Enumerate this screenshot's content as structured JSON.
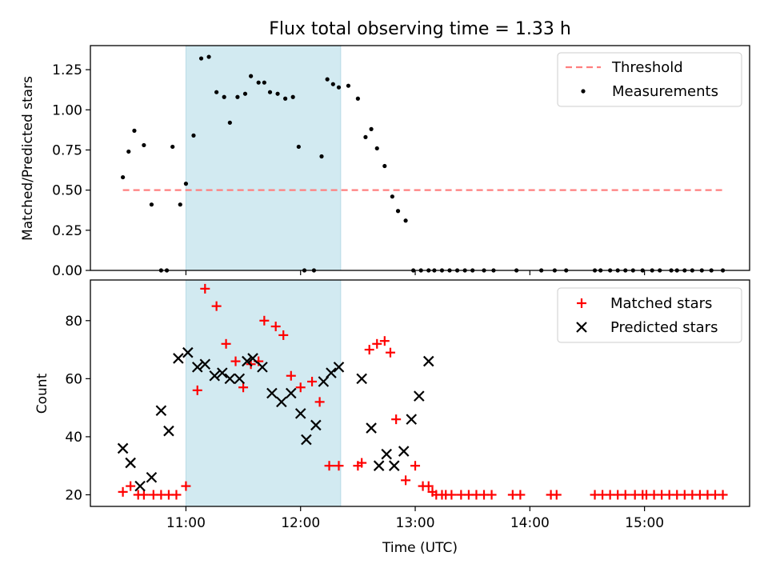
{
  "chart_data": [
    {
      "type": "scatter",
      "title": "Flux total observing time = 1.33 h",
      "xlabel": "",
      "ylabel": "Matched/Predicted stars",
      "xlim": [
        "10:10",
        "15:55"
      ],
      "ylim": [
        0,
        1.4
      ],
      "yticks": [
        "0.00",
        "0.25",
        "0.50",
        "0.75",
        "1.00",
        "1.25"
      ],
      "shaded_region": [
        "11:00",
        "12:21"
      ],
      "legend_position": "top-right",
      "legend": {
        "threshold": "Threshold",
        "measurements": "Measurements"
      },
      "threshold": {
        "value": 0.5,
        "x_start": "10:27",
        "x_end": "15:41",
        "color": "#ff7f7f"
      },
      "series": [
        {
          "name": "Measurements",
          "color": "#000000",
          "x": [
            "10:27",
            "10:30",
            "10:33",
            "10:38",
            "10:42",
            "10:47",
            "10:50",
            "10:53",
            "10:57",
            "11:00",
            "11:04",
            "11:08",
            "11:12",
            "11:16",
            "11:20",
            "11:23",
            "11:27",
            "11:31",
            "11:34",
            "11:38",
            "11:41",
            "11:44",
            "11:48",
            "11:52",
            "11:56",
            "11:59",
            "12:02",
            "12:07",
            "12:11",
            "12:14",
            "12:17",
            "12:20",
            "12:25",
            "12:30",
            "12:34",
            "12:37",
            "12:40",
            "12:44",
            "12:48",
            "12:51",
            "12:55",
            "12:59",
            "13:03",
            "13:07",
            "13:10",
            "13:14",
            "13:18",
            "13:22",
            "13:26",
            "13:30",
            "13:36",
            "13:41",
            "13:53",
            "14:06",
            "14:13",
            "14:19",
            "14:34",
            "14:37",
            "14:42",
            "14:46",
            "14:50",
            "14:54",
            "14:59",
            "15:04",
            "15:08",
            "15:14",
            "15:17",
            "15:21",
            "15:25",
            "15:30",
            "15:35",
            "15:41"
          ],
          "y": [
            0.58,
            0.74,
            0.87,
            0.78,
            0.41,
            0.0,
            0.0,
            0.77,
            0.41,
            0.54,
            0.84,
            1.32,
            1.33,
            1.11,
            1.08,
            0.92,
            1.08,
            1.1,
            1.21,
            1.17,
            1.17,
            1.11,
            1.1,
            1.07,
            1.08,
            0.77,
            0.0,
            0.0,
            0.71,
            1.19,
            1.16,
            1.14,
            1.15,
            1.07,
            0.83,
            0.88,
            0.76,
            0.65,
            0.46,
            0.37,
            0.31,
            0.0,
            0.0,
            0.0,
            0.0,
            0.0,
            0.0,
            0.0,
            0.0,
            0.0,
            0.0,
            0.0,
            0.0,
            0.0,
            0.0,
            0.0,
            0.0,
            0.0,
            0.0,
            0.0,
            0.0,
            0.0,
            0.0,
            0.0,
            0.0,
            0.0,
            0.0,
            0.0,
            0.0,
            0.0,
            0.0,
            0.0
          ]
        }
      ]
    },
    {
      "type": "scatter",
      "title": "",
      "xlabel": "Time (UTC)",
      "ylabel": "Count",
      "xlim": [
        "10:10",
        "15:55"
      ],
      "ylim": [
        16,
        94
      ],
      "yticks": [
        "20",
        "40",
        "60",
        "80"
      ],
      "xticks": [
        "11:00",
        "12:00",
        "13:00",
        "14:00",
        "15:00"
      ],
      "shaded_region": [
        "11:00",
        "12:21"
      ],
      "legend_position": "top-right",
      "series": [
        {
          "name": "Matched stars",
          "marker": "+",
          "color": "#ff0000",
          "x": [
            "10:27",
            "10:31",
            "10:35",
            "10:38",
            "10:43",
            "10:47",
            "10:51",
            "10:55",
            "11:00",
            "11:06",
            "11:10",
            "11:16",
            "11:21",
            "11:26",
            "11:30",
            "11:34",
            "11:38",
            "11:41",
            "11:47",
            "11:51",
            "11:55",
            "12:00",
            "12:06",
            "12:10",
            "12:15",
            "12:20",
            "12:30",
            "12:32",
            "12:36",
            "12:40",
            "12:44",
            "12:47",
            "12:50",
            "12:55",
            "13:00",
            "13:04",
            "13:07",
            "13:09",
            "13:11",
            "13:14",
            "13:16",
            "13:19",
            "13:24",
            "13:28",
            "13:32",
            "13:36",
            "13:40",
            "13:51",
            "13:55",
            "14:11",
            "14:14",
            "14:34",
            "14:38",
            "14:42",
            "14:46",
            "14:50",
            "14:55",
            "14:59",
            "15:01",
            "15:05",
            "15:09",
            "15:13",
            "15:17",
            "15:21",
            "15:25",
            "15:29",
            "15:33",
            "15:37",
            "15:41"
          ],
          "y": [
            21,
            23,
            20,
            20,
            20,
            20,
            20,
            20,
            23,
            56,
            91,
            85,
            72,
            66,
            57,
            65,
            66,
            80,
            78,
            75,
            61,
            57,
            59,
            52,
            30,
            30,
            30,
            31,
            70,
            72,
            73,
            69,
            46,
            25,
            30,
            23,
            23,
            21,
            20,
            20,
            20,
            20,
            20,
            20,
            20,
            20,
            20,
            20,
            20,
            20,
            20,
            20,
            20,
            20,
            20,
            20,
            20,
            20,
            20,
            20,
            20,
            20,
            20,
            20,
            20,
            20,
            20,
            20,
            20
          ]
        },
        {
          "name": "Predicted stars",
          "marker": "x",
          "color": "#000000",
          "x": [
            "10:27",
            "10:31",
            "10:36",
            "10:42",
            "10:47",
            "10:51",
            "10:56",
            "11:01",
            "11:06",
            "11:10",
            "11:15",
            "11:19",
            "11:23",
            "11:28",
            "11:32",
            "11:35",
            "11:40",
            "11:45",
            "11:50",
            "11:55",
            "12:00",
            "12:03",
            "12:08",
            "12:12",
            "12:16",
            "12:20",
            "12:32",
            "12:37",
            "12:41",
            "12:45",
            "12:49",
            "12:54",
            "12:58",
            "13:02",
            "13:07",
            "13:11",
            "13:15",
            "13:19",
            "13:21",
            "13:24",
            "13:29"
          ],
          "y": [
            36,
            31,
            23,
            26,
            49,
            42,
            67,
            69,
            64,
            65,
            61,
            62,
            60,
            60,
            66,
            67,
            64,
            55,
            52,
            55,
            48,
            39,
            44,
            59,
            62,
            64,
            60,
            43,
            30,
            34,
            30,
            35,
            46,
            54,
            66,
            null,
            null,
            null,
            null,
            null,
            null
          ]
        }
      ]
    }
  ]
}
